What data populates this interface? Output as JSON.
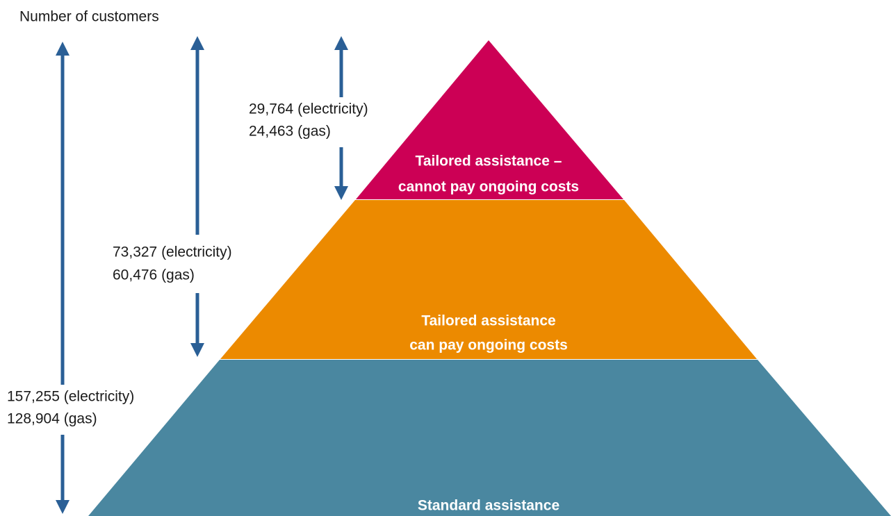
{
  "title": "Number of customers",
  "tiers": [
    {
      "lines": [
        "Tailored assistance –",
        "cannot pay ongoing costs"
      ]
    },
    {
      "lines": [
        "Tailored assistance",
        "can pay ongoing costs"
      ]
    },
    {
      "lines": [
        "Standard assistance"
      ]
    }
  ],
  "annotations": [
    {
      "lines": [
        "29,764 (electricity)",
        "24,463 (gas)"
      ]
    },
    {
      "lines": [
        "73,327 (electricity)",
        "60,476 (gas)"
      ]
    },
    {
      "lines": [
        "157,255 (electricity)",
        "128,904 (gas)"
      ]
    }
  ]
}
